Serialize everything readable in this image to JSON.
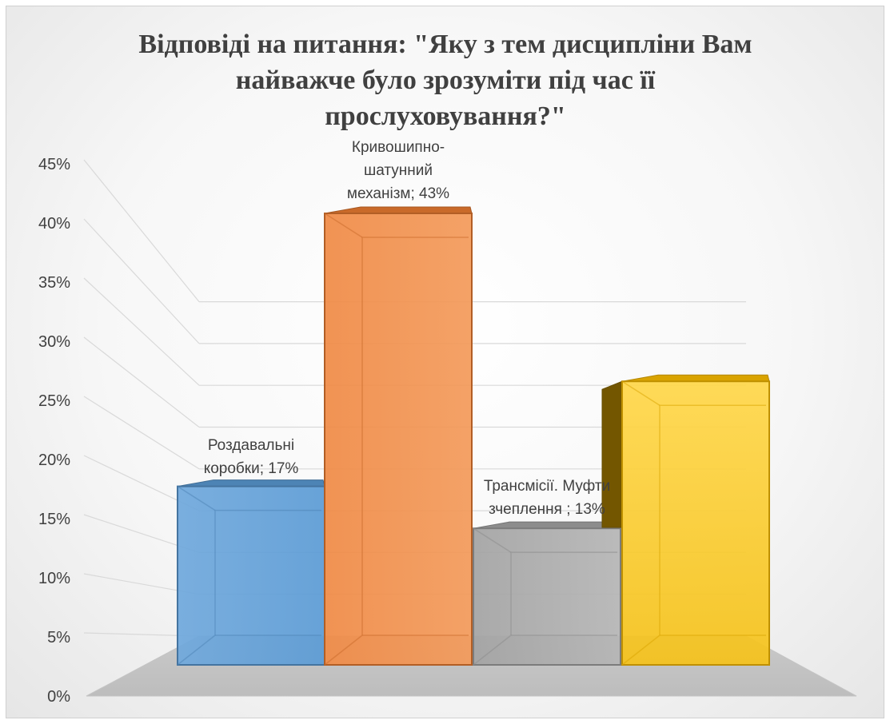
{
  "chart_data": {
    "type": "bar",
    "title_lines": [
      "Відповіді на питання: \"Яку з тем дисципліни Вам",
      "найважче було зрозуміти під час її",
      "прослуховування?\""
    ],
    "ylim": [
      0,
      0.45
    ],
    "ytick_step": 0.05,
    "ytick_labels": [
      "0%",
      "5%",
      "10%",
      "15%",
      "20%",
      "25%",
      "30%",
      "35%",
      "40%",
      "45%"
    ],
    "grid": true,
    "bars": [
      {
        "value": 0.17,
        "color": "#5b9bd5",
        "label_lines": [
          "Роздавальні",
          "коробки; 17%"
        ]
      },
      {
        "value": 0.43,
        "color": "#ed7d31",
        "label_lines": [
          "Кривошипно-",
          "шатунний",
          "механізм; 43%"
        ]
      },
      {
        "value": 0.13,
        "color": "#a5a5a5",
        "label_lines": [
          "Трансмісії. Муфти",
          "зчеплення ; 13%"
        ]
      },
      {
        "value": 0.27,
        "color": "#ffc000",
        "label_lines": []
      }
    ]
  }
}
